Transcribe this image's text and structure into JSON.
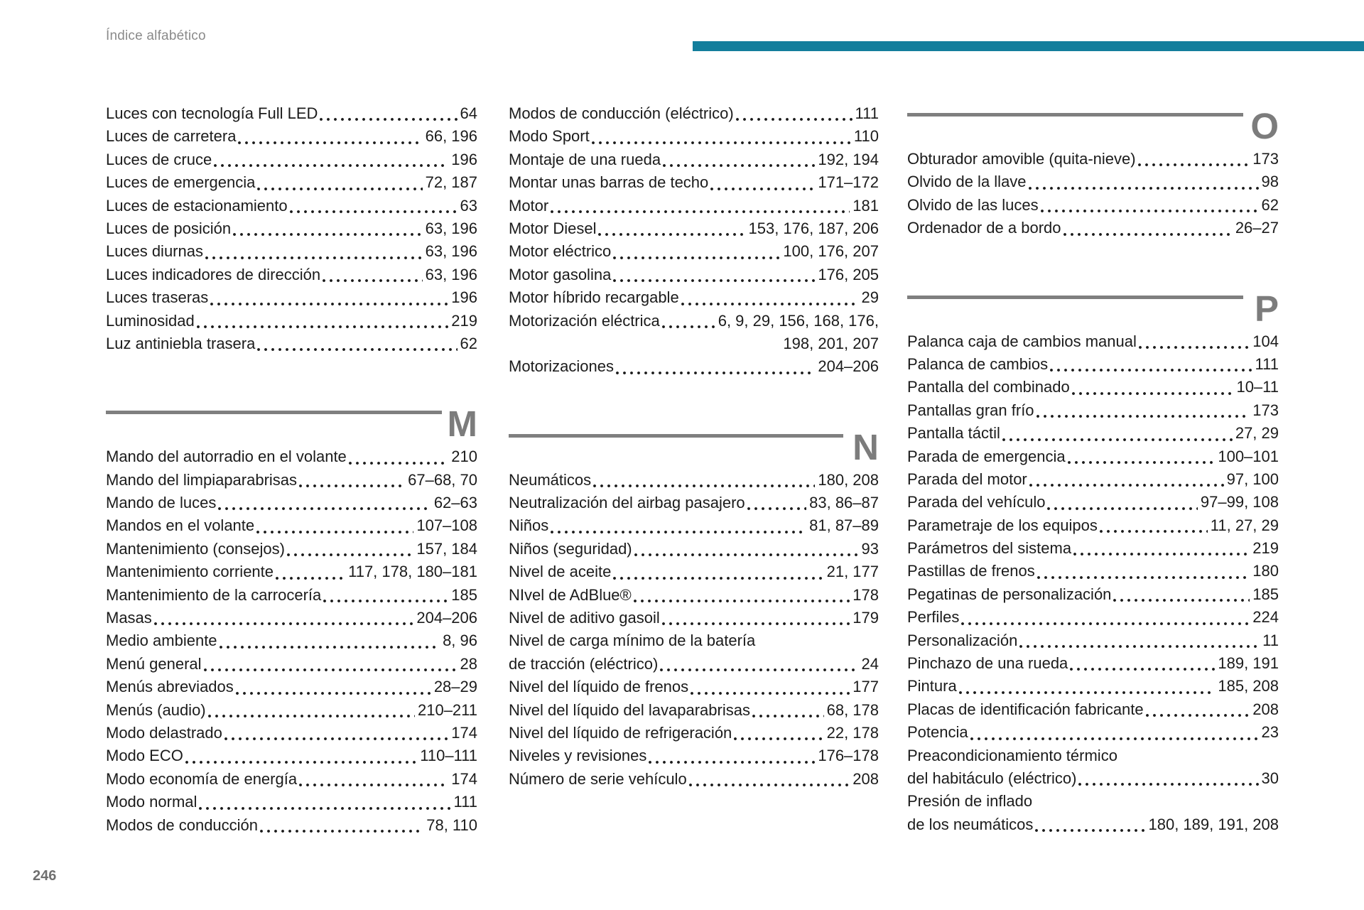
{
  "page": {
    "header_title": "Índice alfabético",
    "page_number": "246",
    "accent_color": "#137e9c",
    "divider_color": "#7f7f7f",
    "text_color": "#1b1b1b"
  },
  "columns": [
    {
      "blocks": [
        {
          "type": "entries",
          "items": [
            {
              "label": "Luces con tecnología Full LED",
              "pages": "64"
            },
            {
              "label": "Luces de carretera",
              "pages": "66, 196"
            },
            {
              "label": "Luces de cruce",
              "pages": "196"
            },
            {
              "label": "Luces de emergencia",
              "pages": "72, 187"
            },
            {
              "label": "Luces de estacionamiento",
              "pages": "63"
            },
            {
              "label": "Luces de posición",
              "pages": "63, 196"
            },
            {
              "label": "Luces diurnas",
              "pages": "63, 196"
            },
            {
              "label": "Luces indicadores de dirección",
              "pages": "63, 196"
            },
            {
              "label": "Luces traseras",
              "pages": "196"
            },
            {
              "label": "Luminosidad",
              "pages": "219"
            },
            {
              "label": "Luz antiniebla trasera",
              "pages": "62"
            }
          ]
        },
        {
          "type": "section",
          "letter": "M"
        },
        {
          "type": "entries",
          "items": [
            {
              "label": "Mando del autorradio en el volante",
              "pages": "210"
            },
            {
              "label": "Mando del limpiaparabrisas",
              "pages": "67–68, 70"
            },
            {
              "label": "Mando de luces",
              "pages": "62–63"
            },
            {
              "label": "Mandos en el volante",
              "pages": "107–108"
            },
            {
              "label": "Mantenimiento (consejos)",
              "pages": "157, 184"
            },
            {
              "label": "Mantenimiento corriente",
              "pages": "117, 178, 180–181"
            },
            {
              "label": "Mantenimiento de la carrocería",
              "pages": "185"
            },
            {
              "label": "Masas",
              "pages": "204–206"
            },
            {
              "label": "Medio ambiente",
              "pages": "8, 96"
            },
            {
              "label": "Menú general",
              "pages": "28"
            },
            {
              "label": "Menús abreviados",
              "pages": "28–29"
            },
            {
              "label": "Menús (audio)",
              "pages": "210–211"
            },
            {
              "label": "Modo delastrado",
              "pages": "174"
            },
            {
              "label": "Modo ECO",
              "pages": "110–111"
            },
            {
              "label": "Modo economía de energía",
              "pages": "174"
            },
            {
              "label": "Modo normal",
              "pages": "111"
            },
            {
              "label": "Modos de conducción",
              "pages": "78, 110"
            }
          ]
        }
      ]
    },
    {
      "blocks": [
        {
          "type": "entries",
          "items": [
            {
              "label": "Modos de conducción (eléctrico)",
              "pages": "111"
            },
            {
              "label": "Modo Sport",
              "pages": "110"
            },
            {
              "label": "Montaje de una rueda",
              "pages": "192, 194"
            },
            {
              "label": "Montar unas barras de techo",
              "pages": "171–172"
            },
            {
              "label": "Motor",
              "pages": "181"
            },
            {
              "label": "Motor Diesel",
              "pages": "153, 176, 187, 206"
            },
            {
              "label": "Motor eléctrico",
              "pages": "100, 176, 207"
            },
            {
              "label": "Motor gasolina",
              "pages": "176, 205"
            },
            {
              "label": "Motor híbrido recargable",
              "pages": "29"
            },
            {
              "label": "Motorización eléctrica",
              "pages": "6, 9, 29, 156, 168, 176,"
            },
            {
              "label": null,
              "pages": "198, 201, 207"
            },
            {
              "label": "Motorizaciones",
              "pages": "204–206"
            }
          ]
        },
        {
          "type": "section",
          "letter": "N"
        },
        {
          "type": "entries",
          "items": [
            {
              "label": "Neumáticos",
              "pages": "180, 208"
            },
            {
              "label": "Neutralización del airbag pasajero",
              "pages": "83, 86–87"
            },
            {
              "label": "Niños",
              "pages": "81, 87–89"
            },
            {
              "label": "Niños (seguridad)",
              "pages": "93"
            },
            {
              "label": "Nivel de aceite",
              "pages": "21, 177"
            },
            {
              "label": "NIvel de AdBlue®",
              "pages": "178"
            },
            {
              "label": "Nivel de aditivo gasoil",
              "pages": "179"
            },
            {
              "label": "Nivel de carga mínimo de la batería",
              "pages": null
            },
            {
              "label": "de tracción (eléctrico)",
              "pages": "24"
            },
            {
              "label": "Nivel del líquido de frenos",
              "pages": "177"
            },
            {
              "label": "Nivel del líquido del lavaparabrisas",
              "pages": "68, 178"
            },
            {
              "label": "Nivel del líquido de refrigeración",
              "pages": "22, 178"
            },
            {
              "label": "Niveles y revisiones",
              "pages": "176–178"
            },
            {
              "label": "Número de serie vehículo",
              "pages": "208"
            }
          ]
        }
      ]
    },
    {
      "blocks": [
        {
          "type": "section",
          "letter": "O"
        },
        {
          "type": "entries",
          "items": [
            {
              "label": "Obturador amovible (quita-nieve)",
              "pages": "173"
            },
            {
              "label": "Olvido de la llave",
              "pages": "98"
            },
            {
              "label": "Olvido de las luces",
              "pages": "62"
            },
            {
              "label": "Ordenador de a bordo",
              "pages": "26–27"
            }
          ]
        },
        {
          "type": "section",
          "letter": "P"
        },
        {
          "type": "entries",
          "items": [
            {
              "label": "Palanca caja de cambios manual",
              "pages": "104"
            },
            {
              "label": "Palanca de cambios",
              "pages": "111"
            },
            {
              "label": "Pantalla del combinado",
              "pages": "10–11"
            },
            {
              "label": "Pantallas gran frío",
              "pages": "173"
            },
            {
              "label": "Pantalla táctil",
              "pages": "27, 29"
            },
            {
              "label": "Parada de emergencia",
              "pages": "100–101"
            },
            {
              "label": "Parada del motor",
              "pages": "97, 100"
            },
            {
              "label": "Parada del vehículo",
              "pages": "97–99, 108"
            },
            {
              "label": "Parametraje de los equipos",
              "pages": "11, 27, 29"
            },
            {
              "label": "Parámetros del sistema",
              "pages": "219"
            },
            {
              "label": "Pastillas de frenos",
              "pages": "180"
            },
            {
              "label": "Pegatinas de personalización",
              "pages": "185"
            },
            {
              "label": "Perfiles",
              "pages": "224"
            },
            {
              "label": "Personalización",
              "pages": "11"
            },
            {
              "label": "Pinchazo de una rueda",
              "pages": "189, 191"
            },
            {
              "label": "Pintura",
              "pages": "185, 208"
            },
            {
              "label": "Placas de identificación fabricante",
              "pages": "208"
            },
            {
              "label": "Potencia",
              "pages": "23"
            },
            {
              "label": "Preacondicionamiento térmico",
              "pages": null
            },
            {
              "label": "del habitáculo (eléctrico)",
              "pages": "30"
            },
            {
              "label": "Presión de inflado",
              "pages": null
            },
            {
              "label": "de los neumáticos",
              "pages": "180, 189, 191, 208"
            }
          ]
        }
      ]
    }
  ]
}
